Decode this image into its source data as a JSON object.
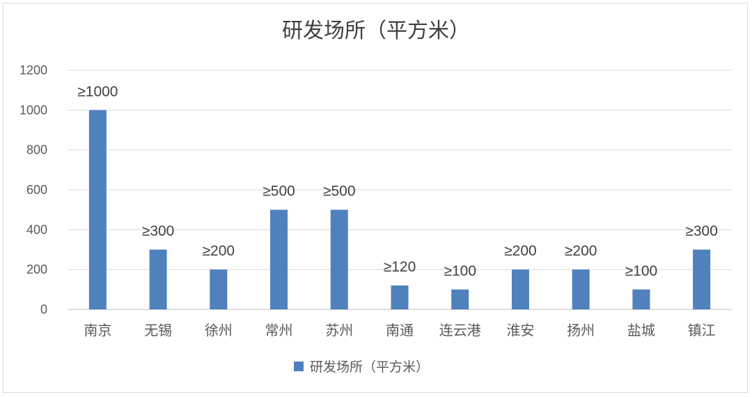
{
  "chart_data": {
    "type": "bar",
    "title": "研发场所（平方米）",
    "categories": [
      "南京",
      "无锡",
      "徐州",
      "常州",
      "苏州",
      "南通",
      "连云港",
      "淮安",
      "扬州",
      "盐城",
      "镇江"
    ],
    "series": [
      {
        "name": "研发场所（平方米）",
        "values": [
          1000,
          300,
          200,
          500,
          500,
          120,
          100,
          200,
          200,
          100,
          300
        ],
        "data_labels": [
          "≥1000",
          "≥300",
          "≥200",
          "≥500",
          "≥500",
          "≥120",
          "≥100",
          "≥200",
          "≥200",
          "≥100",
          "≥300"
        ],
        "color": "#4f81bd"
      }
    ],
    "ylim": [
      0,
      1200
    ],
    "yticks": [
      "0",
      "200",
      "400",
      "600",
      "800",
      "1000",
      "1200"
    ],
    "grid": true,
    "legend_position": "bottom",
    "gridline_color": "#d9d9d9",
    "axis_color": "#bfbfbf"
  }
}
